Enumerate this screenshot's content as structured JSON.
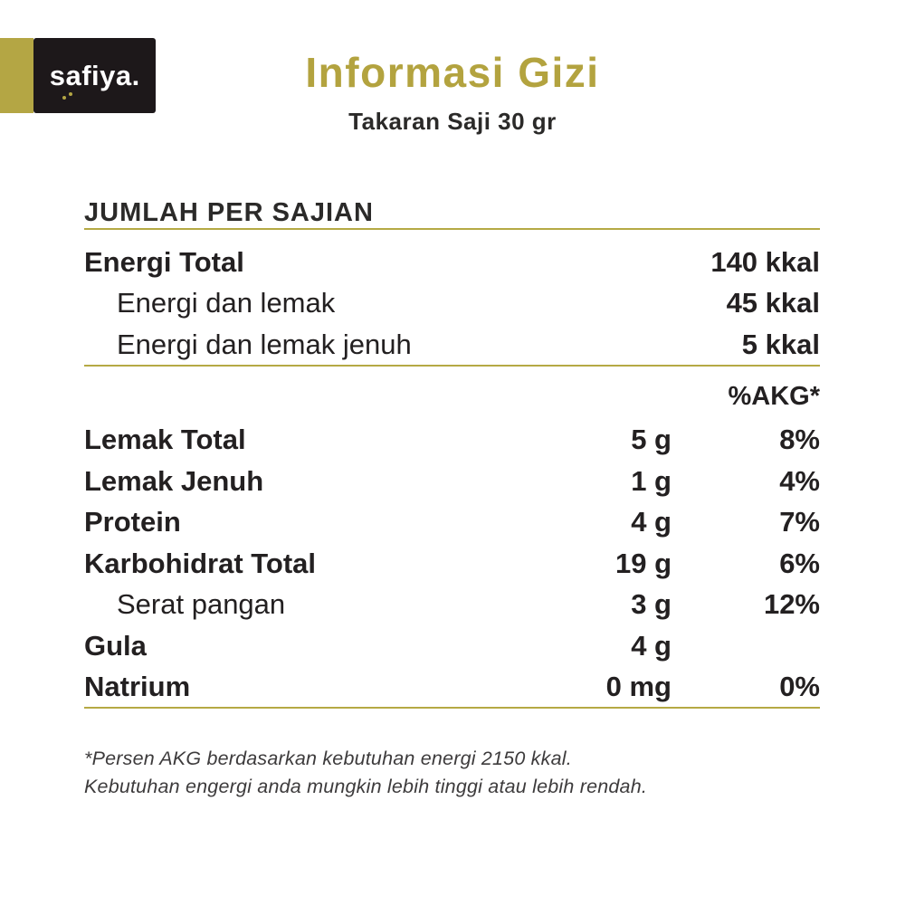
{
  "brand": {
    "logo_text": "safiya",
    "logo_period": ".",
    "accent_color": "#b4a644",
    "logo_bg": "#1d181a"
  },
  "header": {
    "title": "Informasi Gizi",
    "subtitle": "Takaran Saji 30 gr"
  },
  "section": {
    "heading": "JUMLAH PER SAJIAN"
  },
  "energy_rows": [
    {
      "label": "Energi Total",
      "value": "140 kkal"
    },
    {
      "label": "Energi dan lemak",
      "value": "45 kkal"
    },
    {
      "label": "Energi dan lemak jenuh",
      "value": "5 kkal"
    }
  ],
  "akg_header": "%AKG*",
  "nutrient_rows": [
    {
      "label": "Lemak Total",
      "amount": "5 g",
      "akg": "8%"
    },
    {
      "label": "Lemak Jenuh",
      "amount": "1 g",
      "akg": "4%"
    },
    {
      "label": "Protein",
      "amount": "4 g",
      "akg": "7%"
    },
    {
      "label": "Karbohidrat Total",
      "amount": "19 g",
      "akg": "6%"
    },
    {
      "label": "Serat pangan",
      "amount": "3 g",
      "akg": "12%"
    },
    {
      "label": "Gula",
      "amount": "4 g",
      "akg": ""
    },
    {
      "label": "Natrium",
      "amount": "0 mg",
      "akg": "0%"
    }
  ],
  "footnote": {
    "line1": "*Persen AKG berdasarkan kebutuhan energi 2150 kkal.",
    "line2": "Kebutuhan engergi anda mungkin lebih tinggi atau lebih rendah."
  }
}
